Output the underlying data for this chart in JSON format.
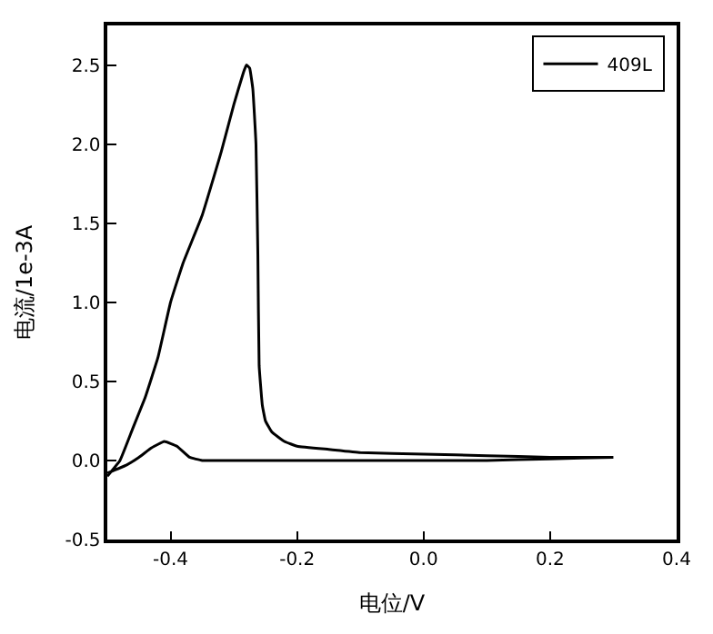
{
  "chart_data": {
    "type": "line",
    "xlabel": "电位/V",
    "ylabel": "电流/1e-3A",
    "series": [
      {
        "name": "409L",
        "color": "#000000",
        "x": [
          -0.5,
          -0.48,
          -0.46,
          -0.44,
          -0.42,
          -0.4,
          -0.38,
          -0.35,
          -0.32,
          -0.3,
          -0.285,
          -0.28,
          -0.275,
          -0.27,
          -0.265,
          -0.262,
          -0.26,
          -0.255,
          -0.25,
          -0.24,
          -0.22,
          -0.2,
          -0.15,
          -0.1,
          0.0,
          0.1,
          0.2,
          0.3,
          0.2,
          0.1,
          0.0,
          -0.1,
          -0.2,
          -0.3,
          -0.35,
          -0.37,
          -0.39,
          -0.41,
          -0.43,
          -0.45,
          -0.47,
          -0.5
        ],
        "values": [
          -0.1,
          0.0,
          0.2,
          0.4,
          0.65,
          1.0,
          1.25,
          1.55,
          1.95,
          2.25,
          2.45,
          2.5,
          2.48,
          2.35,
          2.0,
          1.3,
          0.6,
          0.35,
          0.25,
          0.18,
          0.12,
          0.09,
          0.07,
          0.05,
          0.04,
          0.03,
          0.02,
          0.02,
          0.01,
          0.0,
          0.0,
          0.0,
          0.0,
          0.0,
          0.0,
          0.02,
          0.09,
          0.12,
          0.08,
          0.02,
          -0.03,
          -0.08
        ]
      }
    ],
    "xlim": [
      -0.5,
      0.4
    ],
    "ylim": [
      -0.5,
      2.75
    ],
    "xticks": [
      -0.4,
      -0.2,
      {
        "value": 0,
        "label": "0.0"
      },
      0.2,
      0.4
    ],
    "yticks": [
      -0.5,
      {
        "value": 0,
        "label": "0.0"
      },
      0.5,
      {
        "value": 1,
        "label": "1.0"
      },
      1.5,
      {
        "value": 2,
        "label": "2.0"
      },
      2.5
    ],
    "legend": "top right",
    "marker": "none",
    "line_style": "solid"
  }
}
